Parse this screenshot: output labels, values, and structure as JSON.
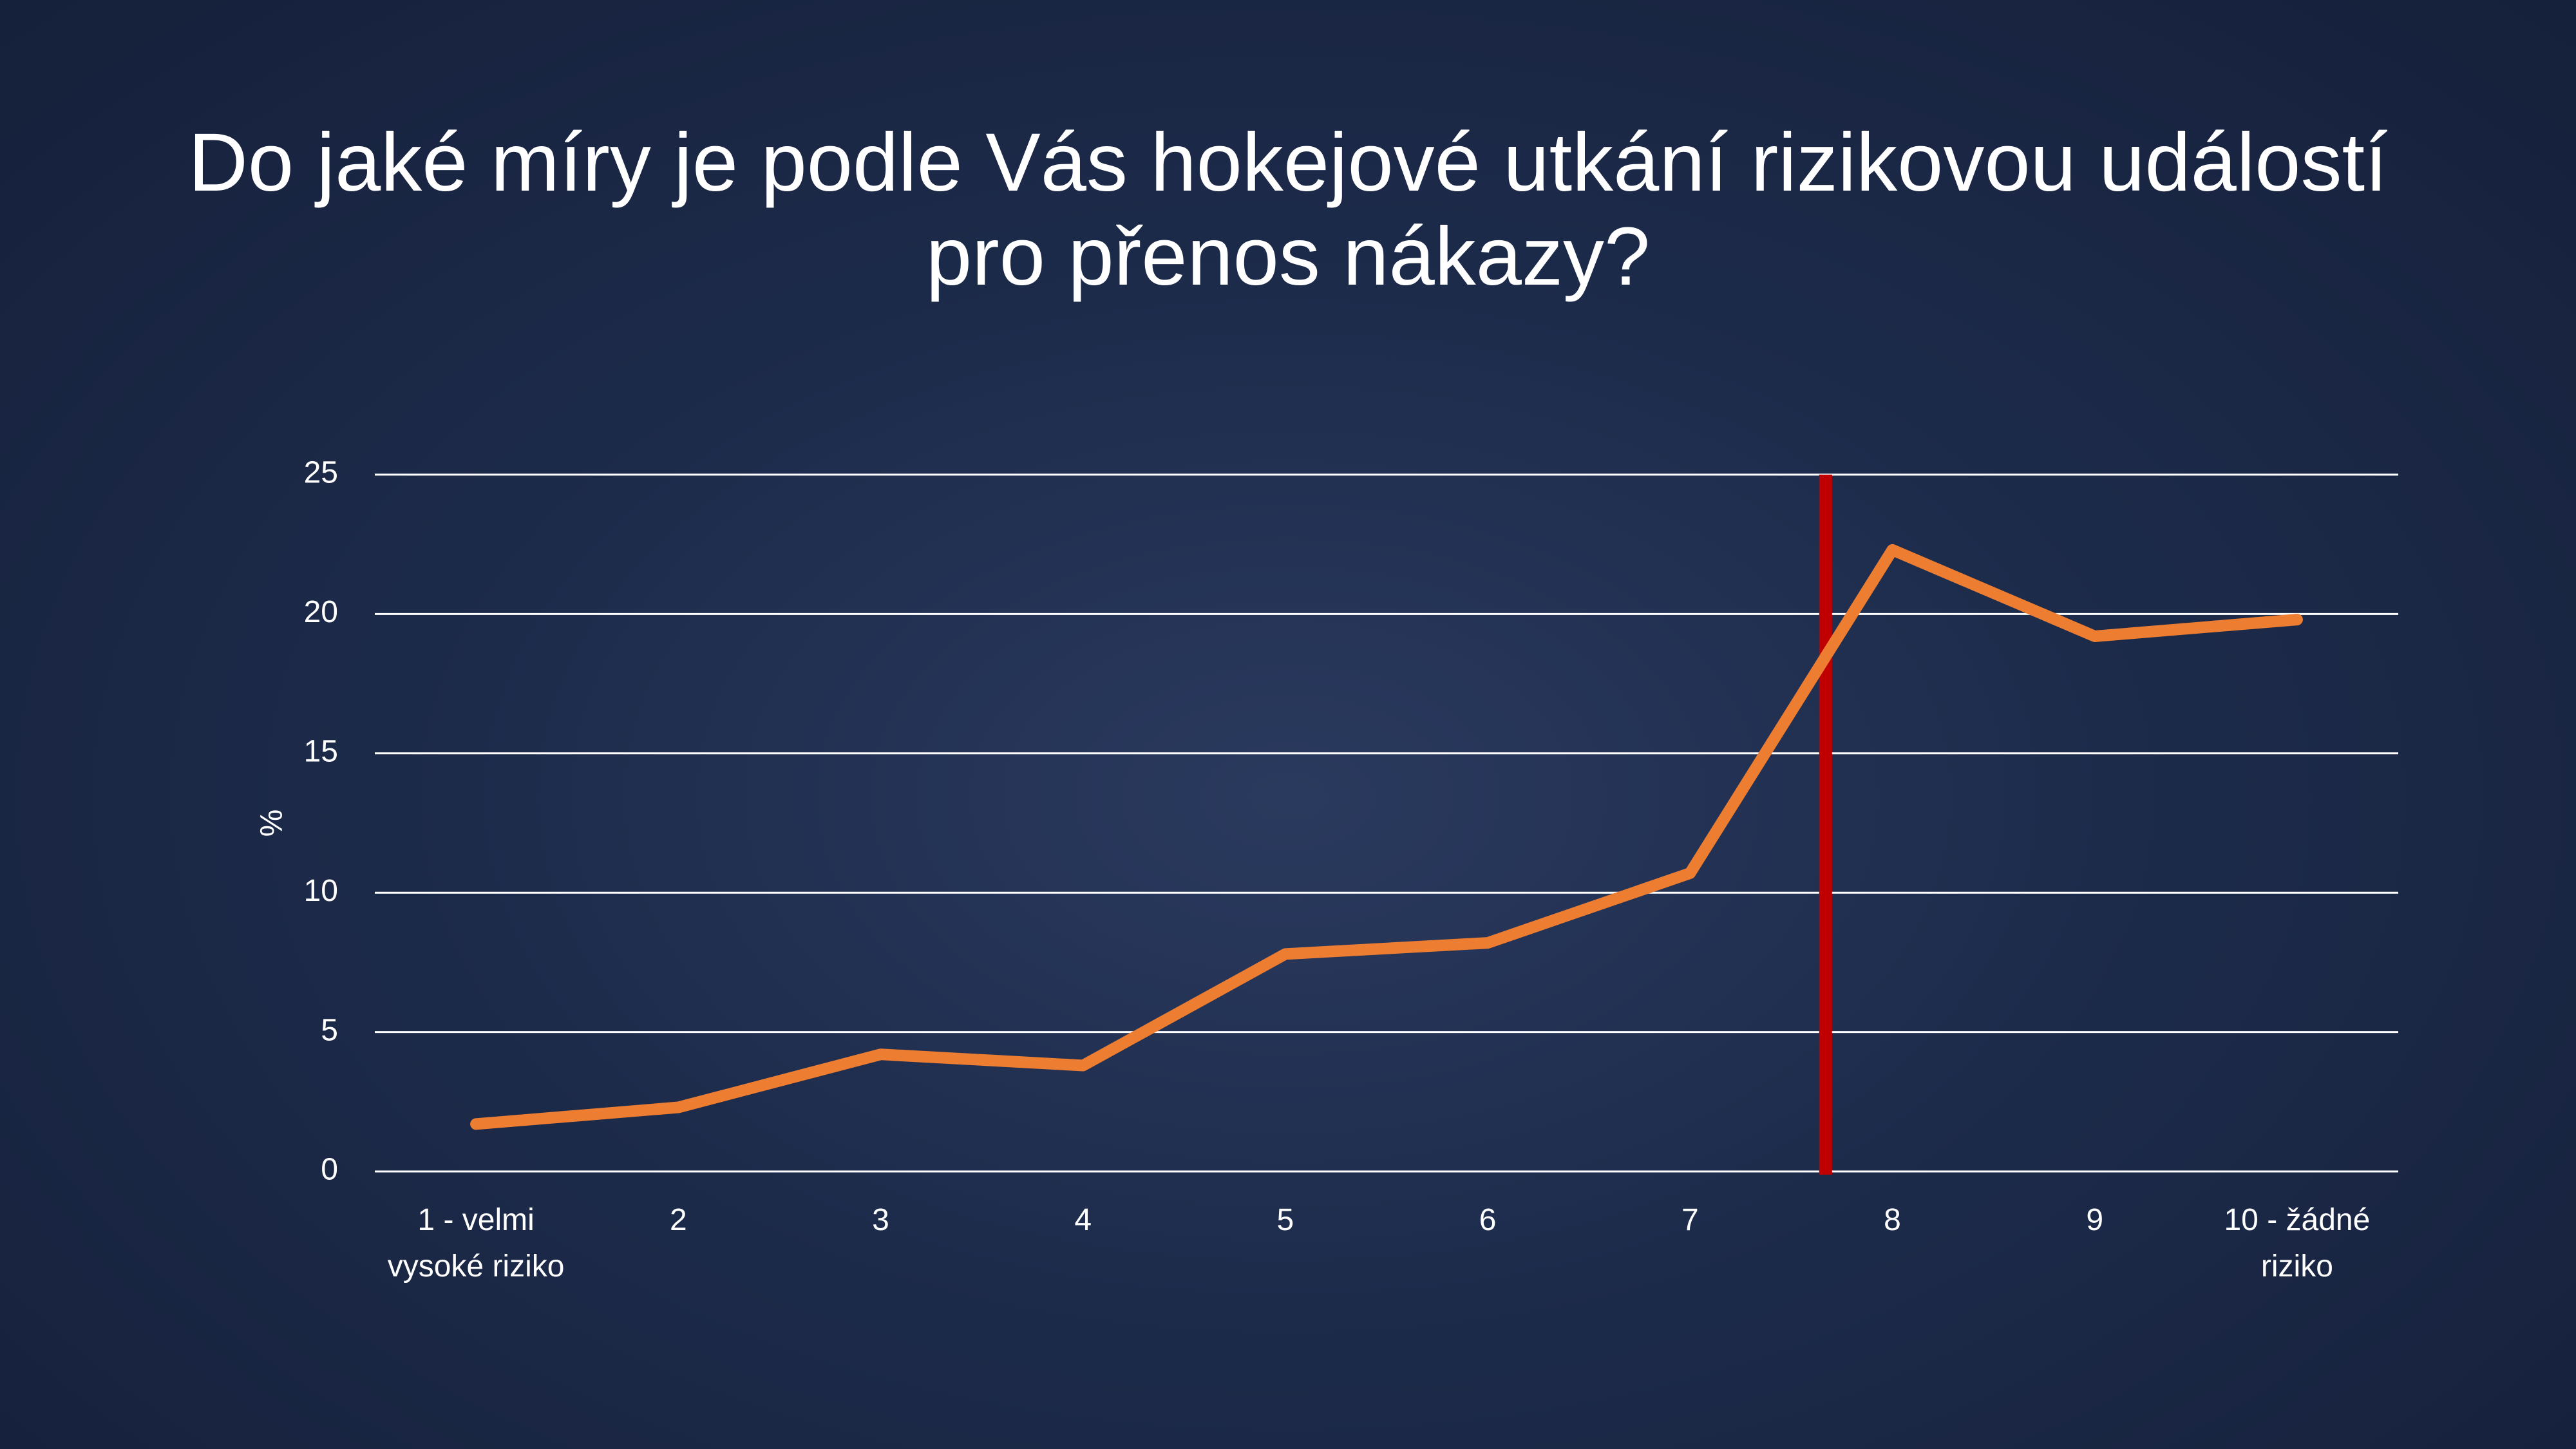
{
  "chart_data": {
    "type": "line",
    "title": "Do jaké míry je podle Vás hokejové utkání rizikovou událostí pro přenos nákazy?",
    "y_label": "%",
    "categories": [
      "1 - velmi vysoké riziko",
      "2",
      "3",
      "4",
      "5",
      "6",
      "7",
      "8",
      "9",
      "10 - žádné riziko"
    ],
    "series": [
      {
        "color": "#ed7d31",
        "values": [
          1.7,
          2.3,
          4.2,
          3.8,
          7.8,
          8.2,
          10.7,
          22.3,
          19.2,
          19.8
        ]
      }
    ],
    "ylim": [
      0,
      25
    ],
    "yticks": [
      0,
      5,
      10,
      15,
      20,
      25
    ],
    "grid": true
  }
}
